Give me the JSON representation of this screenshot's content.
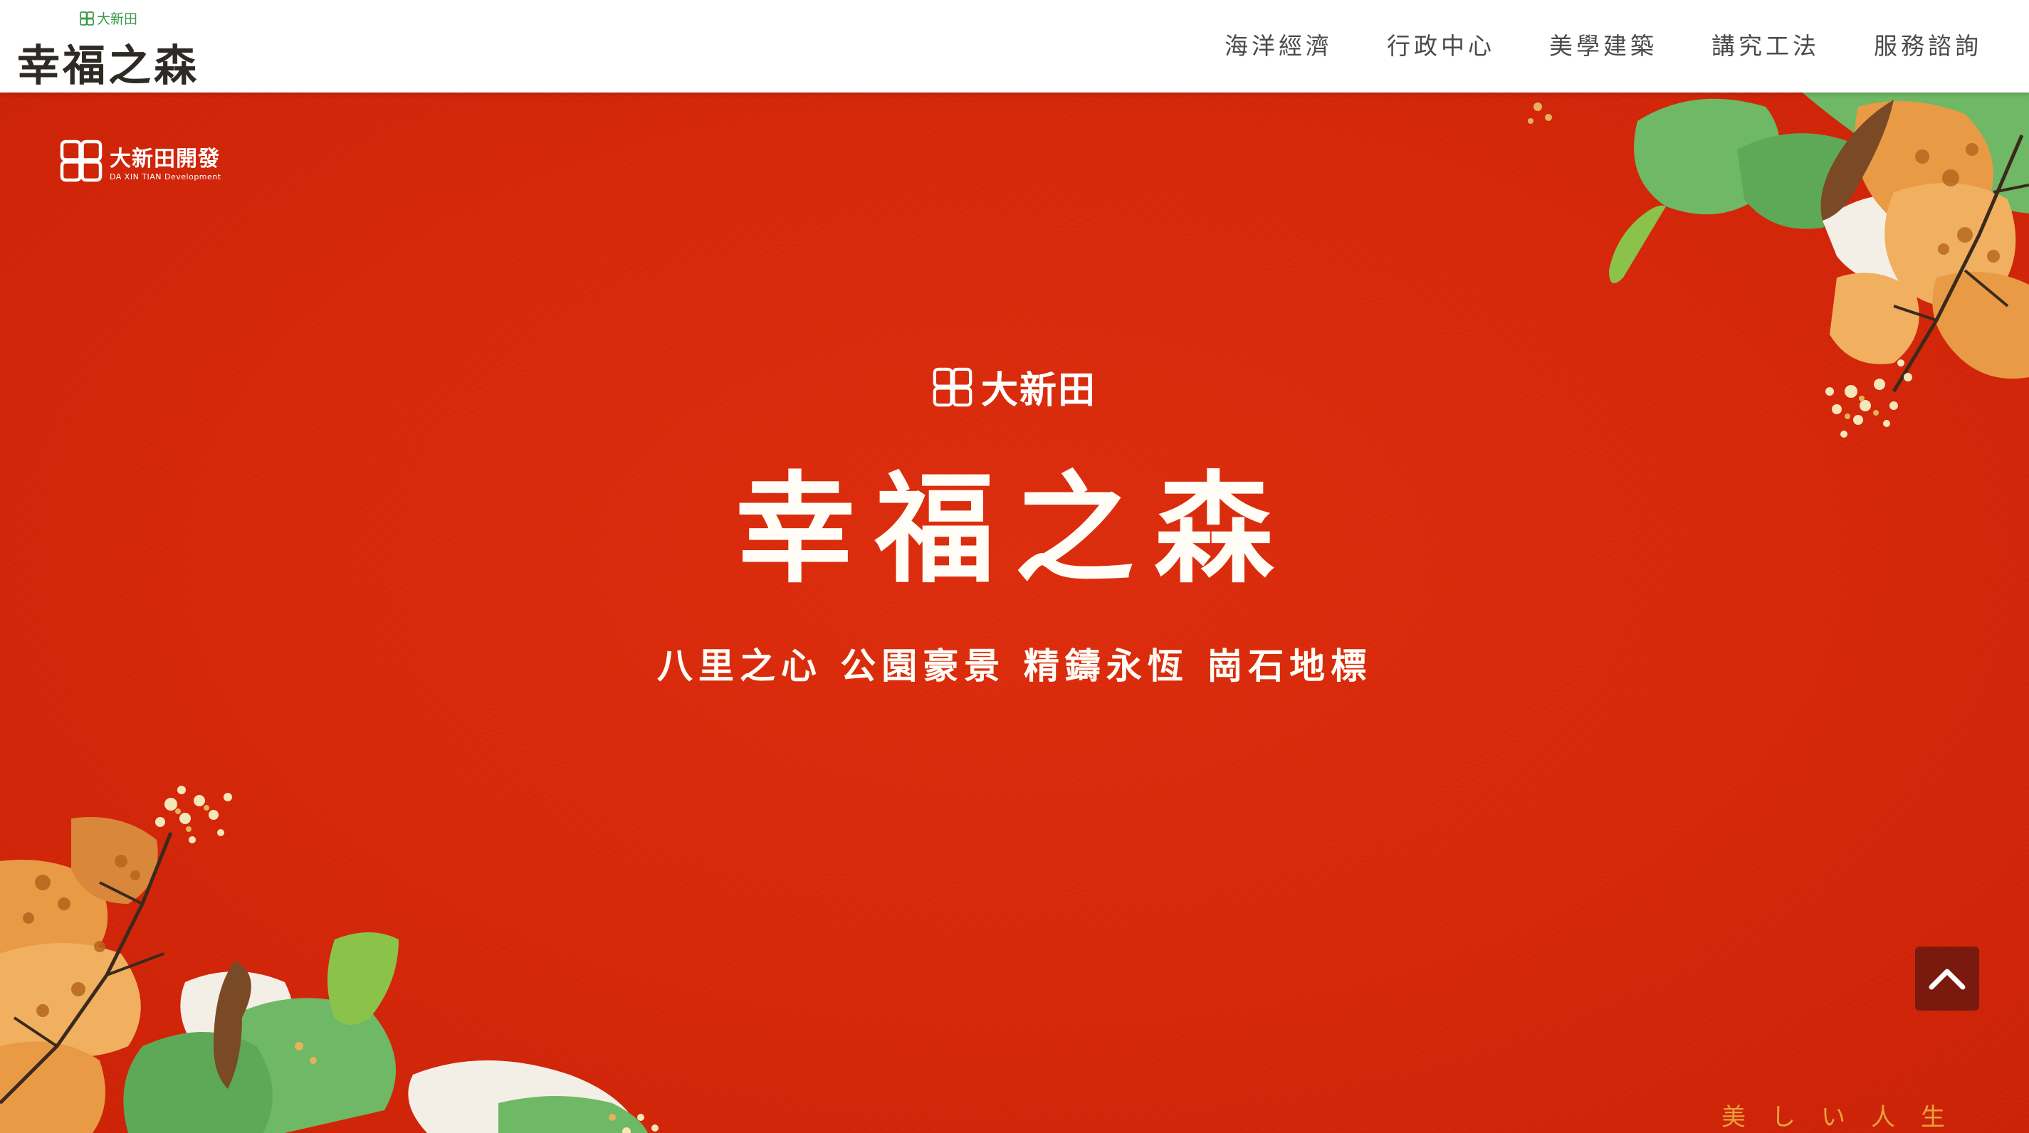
{
  "header": {
    "brand_small": "大新田",
    "brand_title": "幸福之森",
    "nav": [
      {
        "label": "海洋經濟"
      },
      {
        "label": "行政中心"
      },
      {
        "label": "美學建築"
      },
      {
        "label": "講究工法"
      },
      {
        "label": "服務諮詢"
      }
    ]
  },
  "hero": {
    "developer_zh": "大新田開發",
    "developer_en": "DA XIN TIAN Development",
    "brand": "大新田",
    "title": "幸福之森",
    "subtitle": "八里之心 公園豪景 精鑄永恆 崗石地標",
    "tagline": "美しい人生"
  },
  "colors": {
    "background": "#d8290c",
    "header_bg": "#ffffff",
    "brand_green": "#3b9a4a",
    "back_to_top_bg": "#7a1a0e",
    "tagline": "#e8a23c",
    "leaf_green": "#6fb865",
    "blossom_orange": "#e89a45"
  },
  "icons": {
    "logo_mark": "four-petal-logo-icon",
    "back_to_top": "chevron-up-icon"
  }
}
